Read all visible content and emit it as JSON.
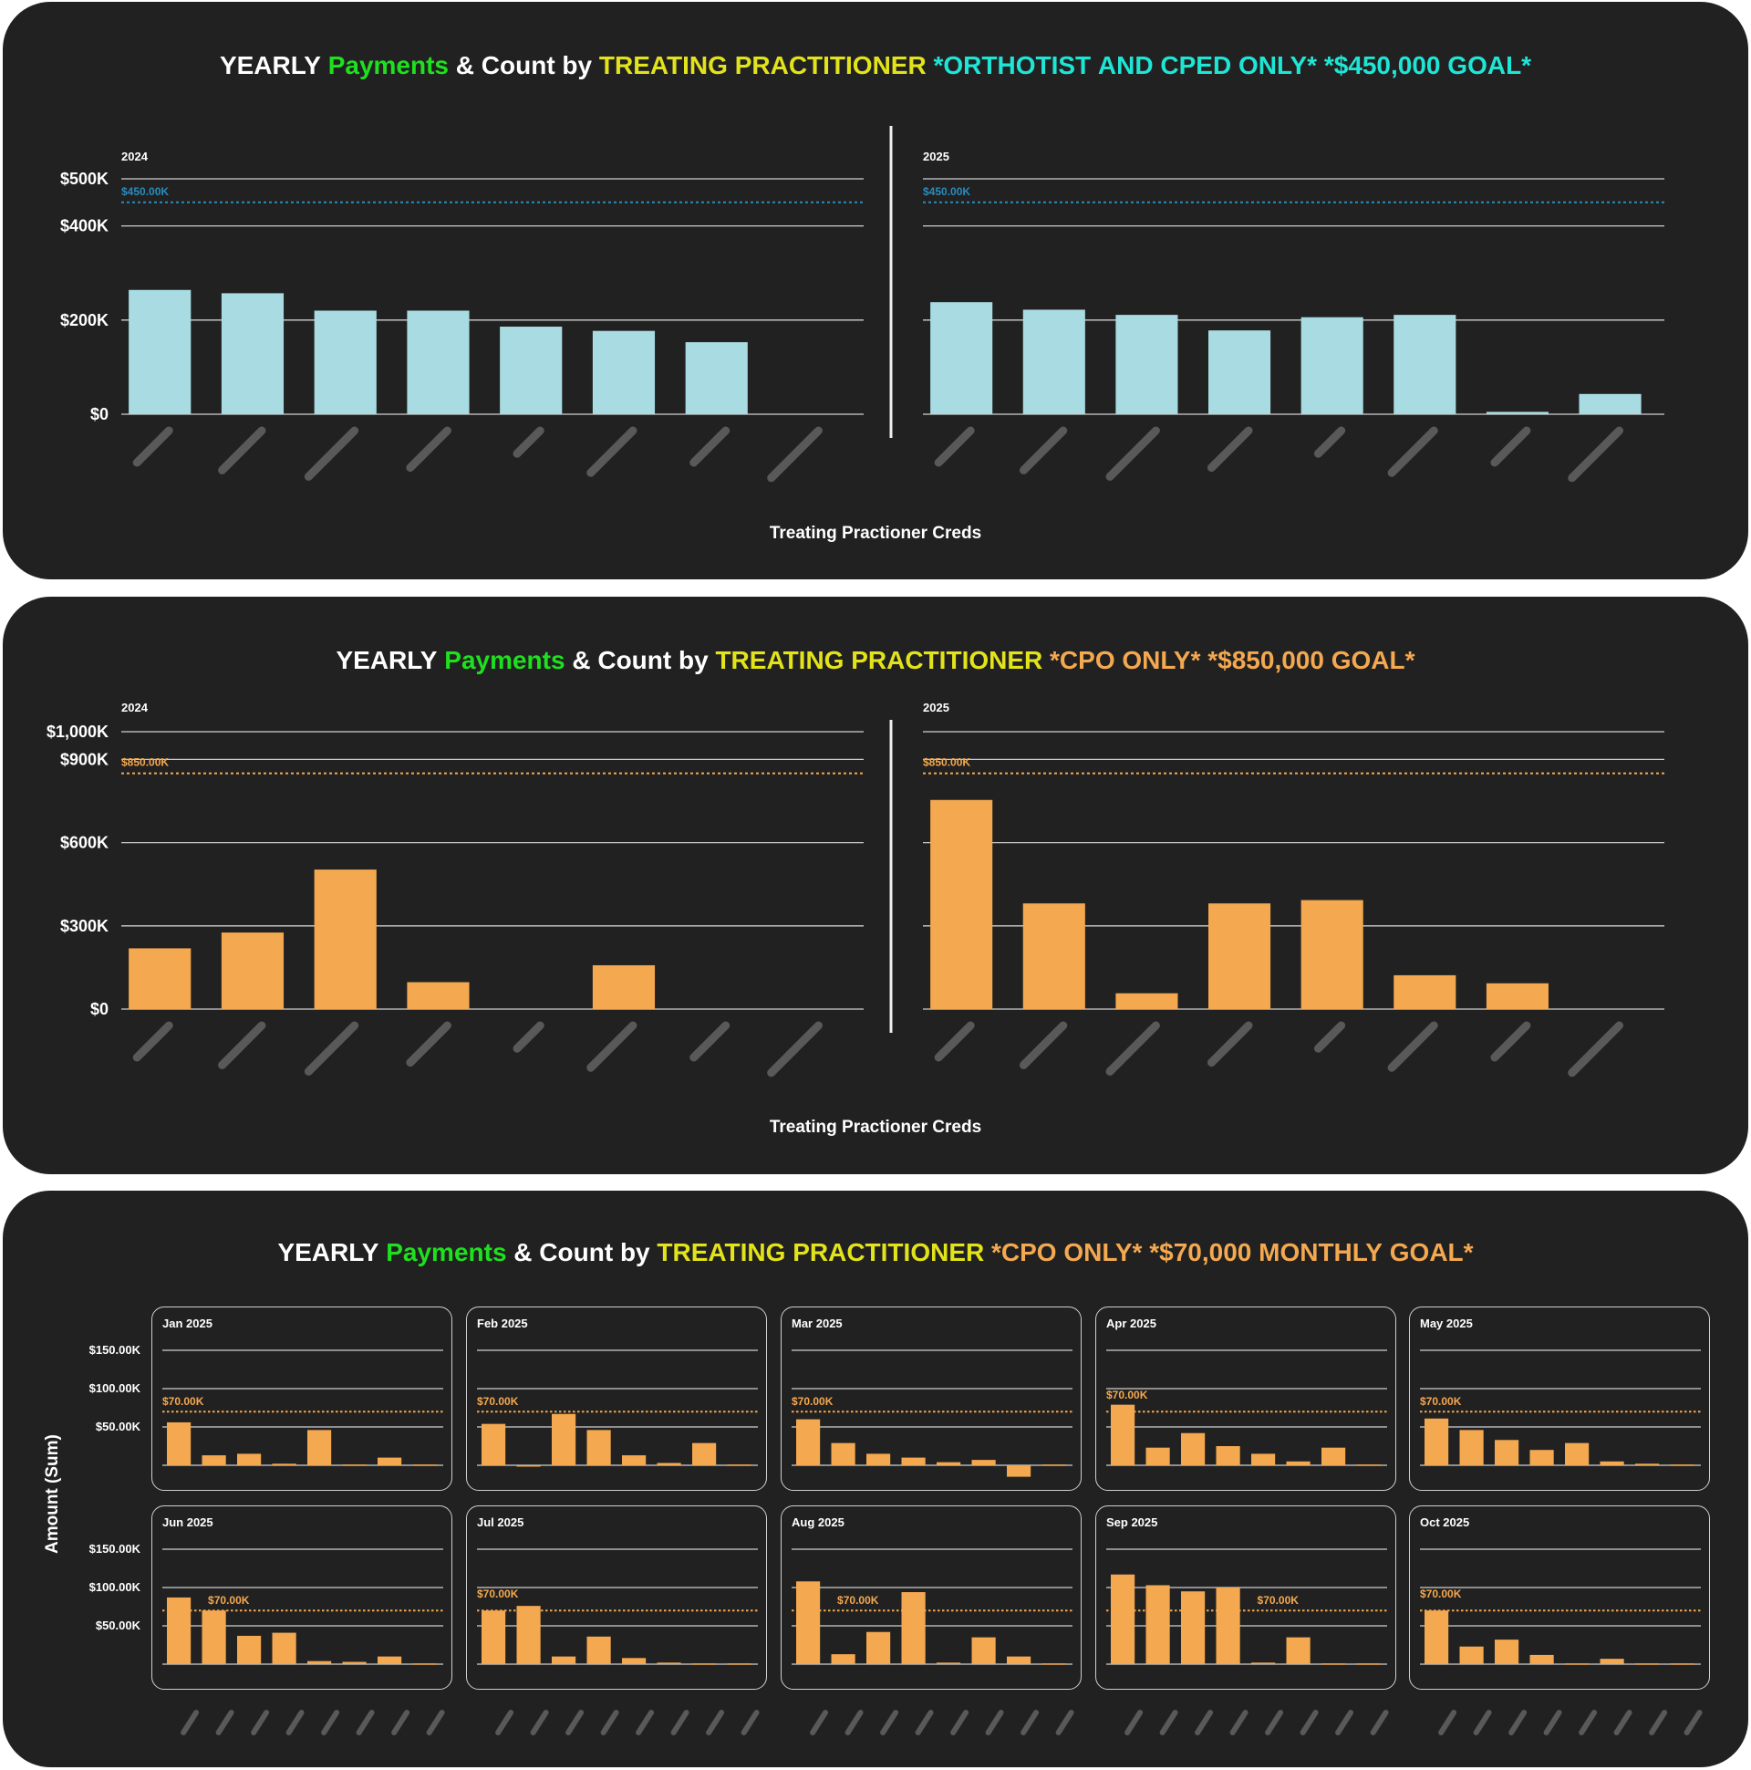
{
  "colors": {
    "teal_bar": "#a8dce2",
    "orange_bar": "#f4a84f",
    "goal_blue": "#2b8bbd",
    "goal_orange": "#f4a84f",
    "grid": "#cfcfcf",
    "redacted_label": "#595959",
    "panel_bg": "#212121"
  },
  "panels": [
    {
      "title": [
        {
          "text": "YEARLY ",
          "color": "white"
        },
        {
          "text": "Payments",
          "color": "green"
        },
        {
          "text": " & Count by ",
          "color": "white"
        },
        {
          "text": "TREATING PRACTITIONER",
          "color": "yellow"
        },
        {
          "text": " *ORTHOTIST AND CPED ONLY* *$450,000 GOAL*",
          "color": "cyan"
        }
      ],
      "xlabel": "Treating Practioner Creds"
    },
    {
      "title": [
        {
          "text": "YEARLY ",
          "color": "white"
        },
        {
          "text": "Payments",
          "color": "green"
        },
        {
          "text": " & Count by ",
          "color": "white"
        },
        {
          "text": "TREATING PRACTITIONER",
          "color": "yellow"
        },
        {
          "text": " *CPO ONLY* *$850,000 GOAL*",
          "color": "orange"
        }
      ],
      "xlabel": "Treating Practioner Creds"
    },
    {
      "title": [
        {
          "text": "YEARLY ",
          "color": "white"
        },
        {
          "text": "Payments",
          "color": "green"
        },
        {
          "text": " & Count by ",
          "color": "white"
        },
        {
          "text": "TREATING PRACTITIONER",
          "color": "yellow"
        },
        {
          "text": " *CPO ONLY* *$70,000 MONTHLY GOAL*",
          "color": "orange"
        }
      ],
      "ylabel": "Amount (Sum)"
    }
  ],
  "chart_data": [
    {
      "type": "bar",
      "title": "YEARLY Payments & Count by TREATING PRACTITIONER *ORTHOTIST AND CPED ONLY* *$450,000 GOAL*",
      "xlabel": "Treating Practioner Creds",
      "ylim": [
        0,
        500000
      ],
      "yticks": [
        {
          "v": 0,
          "label": "$0"
        },
        {
          "v": 200000,
          "label": "$200K"
        },
        {
          "v": 400000,
          "label": "$400K"
        },
        {
          "v": 500000,
          "label": "$500K"
        }
      ],
      "goal": {
        "value": 450000,
        "label": "$450.00K"
      },
      "grid": true,
      "category_labels_redacted": true,
      "facets": [
        {
          "name": "2024",
          "values": [
            264000,
            257000,
            220000,
            220000,
            186000,
            177000,
            153000,
            0
          ]
        },
        {
          "name": "2025",
          "values": [
            238000,
            222000,
            211000,
            178000,
            206000,
            211000,
            5000,
            43000
          ]
        }
      ]
    },
    {
      "type": "bar",
      "title": "YEARLY Payments & Count by TREATING PRACTITIONER *CPO ONLY* *$850,000 GOAL*",
      "xlabel": "Treating Practioner Creds",
      "ylim": [
        0,
        1000000
      ],
      "yticks": [
        {
          "v": 0,
          "label": "$0"
        },
        {
          "v": 300000,
          "label": "$300K"
        },
        {
          "v": 600000,
          "label": "$600K"
        },
        {
          "v": 900000,
          "label": "$900K"
        },
        {
          "v": 1000000,
          "label": "$1,000K"
        }
      ],
      "goal": {
        "value": 850000,
        "label": "$850.00K"
      },
      "grid": true,
      "category_labels_redacted": true,
      "facets": [
        {
          "name": "2024",
          "values": [
            219000,
            276000,
            503000,
            97000,
            0,
            158000,
            0,
            0
          ]
        },
        {
          "name": "2025",
          "values": [
            754000,
            381000,
            57000,
            381000,
            393000,
            122000,
            93000,
            0
          ]
        }
      ]
    },
    {
      "type": "bar",
      "title": "YEARLY Payments & Count by TREATING PRACTITIONER *CPO ONLY* *$70,000 MONTHLY GOAL*",
      "ylabel": "Amount (Sum)",
      "ylim": [
        0,
        150000
      ],
      "yticks": [
        {
          "v": 50000,
          "label": "$50.00K"
        },
        {
          "v": 100000,
          "label": "$100.00K"
        },
        {
          "v": 150000,
          "label": "$150.00K"
        }
      ],
      "goal": {
        "value": 70000,
        "label": "$70.00K"
      },
      "grid": true,
      "category_labels_redacted": true,
      "facets": [
        {
          "name": "Jan 2025",
          "values": [
            56000,
            13000,
            15000,
            2000,
            46000,
            1000,
            10000,
            1000
          ]
        },
        {
          "name": "Feb 2025",
          "values": [
            54000,
            0,
            67000,
            46000,
            13000,
            3000,
            29000,
            1000
          ]
        },
        {
          "name": "Mar 2025",
          "values": [
            60000,
            29000,
            15000,
            10000,
            4000,
            7000,
            -15000,
            1000
          ]
        },
        {
          "name": "Apr 2025",
          "values": [
            79000,
            23000,
            42000,
            25000,
            15000,
            5000,
            23000,
            1000
          ]
        },
        {
          "name": "May 2025",
          "values": [
            61000,
            46000,
            33000,
            20000,
            29000,
            5000,
            2000,
            1000
          ]
        },
        {
          "name": "Jun 2025",
          "values": [
            87000,
            70000,
            37000,
            41000,
            4000,
            3000,
            10000,
            1000
          ]
        },
        {
          "name": "Jul 2025",
          "values": [
            70000,
            76000,
            10000,
            36000,
            8000,
            2000,
            1000,
            1000
          ]
        },
        {
          "name": "Aug 2025",
          "values": [
            108000,
            13000,
            42000,
            94000,
            2000,
            35000,
            10000,
            1000
          ]
        },
        {
          "name": "Sep 2025",
          "values": [
            117000,
            103000,
            95000,
            100000,
            2000,
            35000,
            1000,
            1000
          ]
        },
        {
          "name": "Oct 2025",
          "values": [
            70000,
            23000,
            32000,
            12000,
            1000,
            7000,
            1000,
            1000
          ]
        }
      ]
    }
  ]
}
